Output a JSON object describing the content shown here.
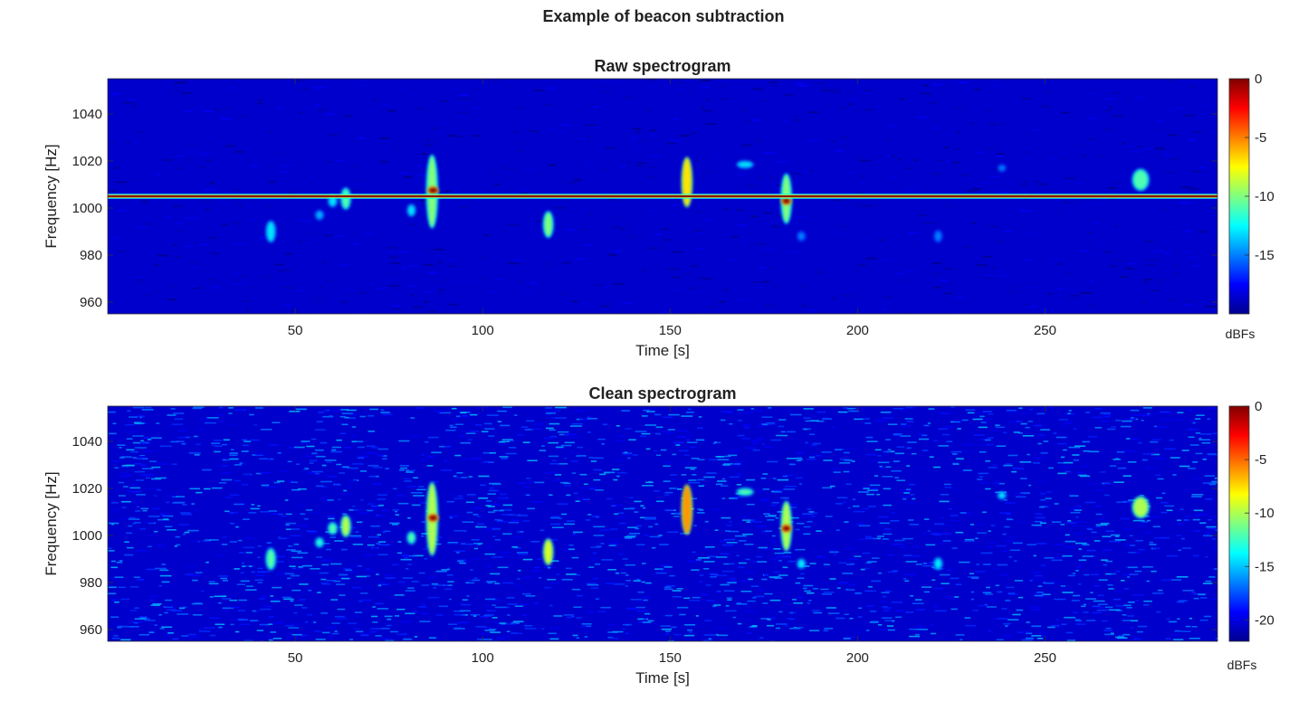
{
  "figure": {
    "suptitle": "Example of beacon subtraction"
  },
  "chart_data": [
    {
      "type": "heatmap",
      "title": "Raw spectrogram",
      "xlabel": "Time [s]",
      "ylabel": "Frequency [Hz]",
      "xlim": [
        0,
        296
      ],
      "ylim": [
        955,
        1055
      ],
      "xticks": [
        50,
        100,
        150,
        200,
        250
      ],
      "yticks": [
        960,
        980,
        1000,
        1020,
        1040
      ],
      "colormap": "jet",
      "colorbar": {
        "label": "dBFs",
        "clim": [
          -20,
          0
        ],
        "ticks": [
          0,
          -5,
          -10,
          -15
        ]
      },
      "background_level_dBFs": -19,
      "beacon_line": {
        "frequency_hz": 1005,
        "level_dBFs": 0
      },
      "events": [
        {
          "t": 43.5,
          "f": 990,
          "width_s": 1.2,
          "height_hz": 8,
          "level_dBFs": -13
        },
        {
          "t": 56.5,
          "f": 997,
          "width_s": 0.8,
          "height_hz": 3,
          "level_dBFs": -14
        },
        {
          "t": 60,
          "f": 1003,
          "width_s": 1.0,
          "height_hz": 4,
          "level_dBFs": -13
        },
        {
          "t": 63.5,
          "f": 1004,
          "width_s": 1.2,
          "height_hz": 8,
          "level_dBFs": -11
        },
        {
          "t": 81,
          "f": 999,
          "width_s": 0.8,
          "height_hz": 4,
          "level_dBFs": -13
        },
        {
          "t": 86.5,
          "f": 1007,
          "width_s": 1.6,
          "height_hz": 30,
          "level_dBFs": -10
        },
        {
          "t": 86.8,
          "f": 1007.5,
          "width_s": 1.4,
          "height_hz": 2,
          "level_dBFs": 0
        },
        {
          "t": 117.5,
          "f": 993,
          "width_s": 1.2,
          "height_hz": 10,
          "level_dBFs": -10
        },
        {
          "t": 154.5,
          "f": 1011,
          "width_s": 1.4,
          "height_hz": 20,
          "level_dBFs": -7
        },
        {
          "t": 170,
          "f": 1018.5,
          "width_s": 3.0,
          "height_hz": 2,
          "level_dBFs": -13
        },
        {
          "t": 181,
          "f": 1004,
          "width_s": 1.4,
          "height_hz": 20,
          "level_dBFs": -10
        },
        {
          "t": 181,
          "f": 1003,
          "width_s": 1.2,
          "height_hz": 2,
          "level_dBFs": 0
        },
        {
          "t": 185,
          "f": 988,
          "width_s": 0.8,
          "height_hz": 3,
          "level_dBFs": -15
        },
        {
          "t": 221.5,
          "f": 988,
          "width_s": 0.8,
          "height_hz": 4,
          "level_dBFs": -15
        },
        {
          "t": 238.5,
          "f": 1017,
          "width_s": 0.8,
          "height_hz": 2,
          "level_dBFs": -15
        },
        {
          "t": 275.5,
          "f": 1012,
          "width_s": 3.0,
          "height_hz": 8,
          "level_dBFs": -11
        }
      ]
    },
    {
      "type": "heatmap",
      "title": "Clean spectrogram",
      "xlabel": "Time [s]",
      "ylabel": "Frequency [Hz]",
      "xlim": [
        0,
        296
      ],
      "ylim": [
        955,
        1055
      ],
      "xticks": [
        50,
        100,
        150,
        200,
        250
      ],
      "yticks": [
        960,
        980,
        1000,
        1020,
        1040
      ],
      "colormap": "jet",
      "colorbar": {
        "label": "dBFs",
        "clim": [
          -22,
          0
        ],
        "ticks": [
          0,
          -5,
          -10,
          -15,
          -20
        ]
      },
      "background_level_dBFs": -18,
      "beacon_line": null,
      "events": [
        {
          "t": 43.5,
          "f": 990,
          "width_s": 1.2,
          "height_hz": 8,
          "level_dBFs": -12
        },
        {
          "t": 56.5,
          "f": 997,
          "width_s": 0.8,
          "height_hz": 3,
          "level_dBFs": -13
        },
        {
          "t": 60,
          "f": 1003,
          "width_s": 1.0,
          "height_hz": 4,
          "level_dBFs": -12
        },
        {
          "t": 63.5,
          "f": 1004,
          "width_s": 1.2,
          "height_hz": 8,
          "level_dBFs": -10
        },
        {
          "t": 81,
          "f": 999,
          "width_s": 0.8,
          "height_hz": 4,
          "level_dBFs": -12
        },
        {
          "t": 86.5,
          "f": 1007,
          "width_s": 1.6,
          "height_hz": 30,
          "level_dBFs": -10
        },
        {
          "t": 86.8,
          "f": 1007.5,
          "width_s": 1.4,
          "height_hz": 2,
          "level_dBFs": 0
        },
        {
          "t": 117.5,
          "f": 993,
          "width_s": 1.2,
          "height_hz": 10,
          "level_dBFs": -9
        },
        {
          "t": 154.5,
          "f": 1011,
          "width_s": 1.4,
          "height_hz": 20,
          "level_dBFs": -6
        },
        {
          "t": 170,
          "f": 1018.5,
          "width_s": 3.0,
          "height_hz": 2,
          "level_dBFs": -12
        },
        {
          "t": 181,
          "f": 1004,
          "width_s": 1.4,
          "height_hz": 20,
          "level_dBFs": -10
        },
        {
          "t": 181,
          "f": 1003,
          "width_s": 1.2,
          "height_hz": 2,
          "level_dBFs": 0
        },
        {
          "t": 185,
          "f": 988,
          "width_s": 0.8,
          "height_hz": 3,
          "level_dBFs": -14
        },
        {
          "t": 221.5,
          "f": 988,
          "width_s": 0.8,
          "height_hz": 4,
          "level_dBFs": -14
        },
        {
          "t": 238.5,
          "f": 1017,
          "width_s": 0.8,
          "height_hz": 2,
          "level_dBFs": -14
        },
        {
          "t": 275.5,
          "f": 1012,
          "width_s": 3.0,
          "height_hz": 8,
          "level_dBFs": -10
        }
      ]
    }
  ]
}
